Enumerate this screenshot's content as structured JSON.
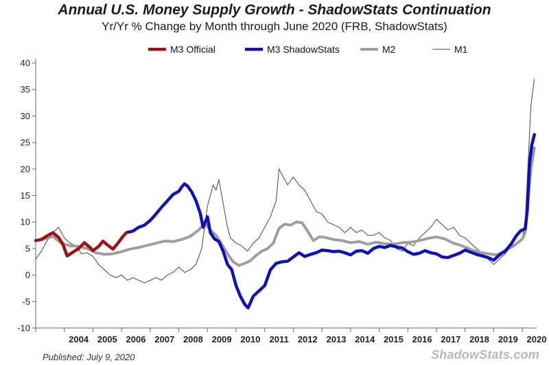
{
  "chart_data": {
    "type": "line",
    "title": "Annual U.S. Money Supply Growth - ShadowStats Continuation",
    "subtitle": "Yr/Yr % Change by Month through June 2020  (FRB, ShadowStats)",
    "ylim": [
      -10,
      40
    ],
    "yticks": [
      -10,
      -5,
      0,
      5,
      10,
      15,
      20,
      25,
      30,
      35,
      40
    ],
    "ytick_labels": [
      "-10",
      "-5",
      "0",
      "5",
      "10",
      "15",
      "20",
      "25",
      "30",
      "35",
      "40"
    ],
    "xlim": [
      2003.0,
      2020.5
    ],
    "xtick_labels": [
      "2004",
      "2005",
      "2006",
      "2007",
      "2008",
      "2009",
      "2010",
      "2011",
      "2012",
      "2013",
      "2014",
      "2015",
      "2016",
      "2017",
      "2018",
      "2019",
      "2020"
    ],
    "xtick_positions": [
      2004,
      2005,
      2006,
      2007,
      2008,
      2009,
      2010,
      2011,
      2012,
      2013,
      2014,
      2015,
      2016,
      2017,
      2018,
      2019,
      2020
    ],
    "grid": false,
    "legend_position": "top",
    "series": [
      {
        "name": "M3 Official",
        "color": "#9b1115",
        "width": 4.5,
        "x": [
          2003.0,
          2003.2,
          2003.4,
          2003.6,
          2003.8,
          2003.95,
          2004.1,
          2004.3,
          2004.5,
          2004.7,
          2004.9,
          2005.0,
          2005.2,
          2005.35,
          2005.5,
          2005.7,
          2005.9,
          2006.05,
          2006.17
        ],
        "y": [
          6.5,
          6.7,
          7.4,
          8.0,
          7.1,
          5.8,
          3.6,
          4.3,
          5.0,
          6.1,
          5.2,
          4.6,
          5.4,
          6.4,
          5.7,
          4.9,
          6.2,
          7.3,
          8.0
        ]
      },
      {
        "name": "M3 ShadowStats",
        "color": "#1010b8",
        "width": 4.5,
        "x": [
          2006.17,
          2006.4,
          2006.6,
          2006.8,
          2007.0,
          2007.2,
          2007.4,
          2007.6,
          2007.8,
          2008.0,
          2008.1,
          2008.2,
          2008.3,
          2008.45,
          2008.6,
          2008.75,
          2008.85,
          2009.0,
          2009.1,
          2009.25,
          2009.4,
          2009.55,
          2009.7,
          2009.85,
          2010.0,
          2010.15,
          2010.3,
          2010.42,
          2010.6,
          2010.8,
          2011.0,
          2011.2,
          2011.4,
          2011.6,
          2011.8,
          2012.0,
          2012.2,
          2012.4,
          2012.6,
          2012.8,
          2013.0,
          2013.2,
          2013.4,
          2013.6,
          2013.8,
          2014.0,
          2014.2,
          2014.4,
          2014.6,
          2014.8,
          2015.0,
          2015.2,
          2015.4,
          2015.6,
          2015.8,
          2016.0,
          2016.2,
          2016.4,
          2016.6,
          2016.8,
          2017.0,
          2017.2,
          2017.4,
          2017.6,
          2017.8,
          2018.0,
          2018.2,
          2018.4,
          2018.6,
          2018.8,
          2019.0,
          2019.2,
          2019.4,
          2019.6,
          2019.8,
          2019.95,
          2020.1,
          2020.17,
          2020.25,
          2020.33,
          2020.42
        ],
        "y": [
          8.0,
          8.3,
          9.0,
          9.4,
          10.3,
          11.5,
          12.8,
          14.0,
          15.2,
          15.8,
          16.6,
          17.2,
          16.8,
          15.7,
          14.0,
          11.6,
          9.0,
          11.0,
          8.0,
          6.8,
          6.3,
          4.5,
          2.0,
          1.0,
          -2.0,
          -4.0,
          -5.5,
          -6.2,
          -4.0,
          -3.0,
          -2.0,
          1.0,
          2.2,
          2.5,
          2.6,
          3.4,
          4.2,
          3.5,
          3.9,
          4.2,
          4.7,
          4.6,
          4.4,
          4.5,
          4.2,
          3.8,
          4.5,
          4.6,
          4.1,
          5.0,
          5.4,
          5.2,
          5.6,
          5.3,
          5.1,
          4.4,
          3.9,
          4.1,
          4.6,
          4.2,
          4.0,
          3.4,
          3.3,
          3.7,
          4.1,
          4.7,
          4.3,
          3.9,
          3.6,
          3.3,
          2.8,
          3.8,
          4.5,
          5.8,
          7.5,
          8.4,
          8.7,
          12.0,
          21.0,
          24.5,
          26.5
        ]
      },
      {
        "name": "M2",
        "color": "#9e9e9e",
        "width": 4,
        "x": [
          2003.0,
          2003.3,
          2003.6,
          2003.9,
          2004.2,
          2004.5,
          2004.8,
          2005.1,
          2005.4,
          2005.7,
          2006.0,
          2006.3,
          2006.6,
          2006.9,
          2007.2,
          2007.5,
          2007.8,
          2008.1,
          2008.4,
          2008.7,
          2008.9,
          2009.1,
          2009.3,
          2009.5,
          2009.7,
          2009.9,
          2010.1,
          2010.3,
          2010.5,
          2010.7,
          2010.9,
          2011.1,
          2011.3,
          2011.5,
          2011.7,
          2011.9,
          2012.1,
          2012.3,
          2012.5,
          2012.7,
          2012.9,
          2013.1,
          2013.4,
          2013.7,
          2014.0,
          2014.3,
          2014.6,
          2014.9,
          2015.2,
          2015.5,
          2015.8,
          2016.1,
          2016.4,
          2016.7,
          2017.0,
          2017.3,
          2017.6,
          2017.9,
          2018.2,
          2018.5,
          2018.8,
          2019.1,
          2019.4,
          2019.7,
          2020.0,
          2020.1,
          2020.2,
          2020.3,
          2020.42
        ],
        "y": [
          6.5,
          6.8,
          7.3,
          6.0,
          5.5,
          5.4,
          5.0,
          4.2,
          3.9,
          4.0,
          4.4,
          4.9,
          5.2,
          5.6,
          6.0,
          6.4,
          6.3,
          6.7,
          7.3,
          8.5,
          9.8,
          8.5,
          7.5,
          5.8,
          4.0,
          2.5,
          1.8,
          2.2,
          2.7,
          3.7,
          4.5,
          5.0,
          6.0,
          8.8,
          9.6,
          9.4,
          10.0,
          9.9,
          8.3,
          6.5,
          7.2,
          7.1,
          6.7,
          6.5,
          6.1,
          6.3,
          5.8,
          6.2,
          5.9,
          5.8,
          6.1,
          6.2,
          6.5,
          6.9,
          7.2,
          6.8,
          6.0,
          5.5,
          4.8,
          4.3,
          4.0,
          3.8,
          4.6,
          5.5,
          6.8,
          8.0,
          14.0,
          20.0,
          24.0
        ]
      },
      {
        "name": "M1",
        "color": "#444444",
        "width": 1,
        "x": [
          2003.0,
          2003.2,
          2003.4,
          2003.6,
          2003.8,
          2004.0,
          2004.2,
          2004.4,
          2004.6,
          2004.8,
          2005.0,
          2005.2,
          2005.4,
          2005.6,
          2005.8,
          2006.0,
          2006.2,
          2006.4,
          2006.6,
          2006.8,
          2007.0,
          2007.2,
          2007.4,
          2007.6,
          2007.8,
          2008.0,
          2008.2,
          2008.4,
          2008.6,
          2008.8,
          2009.0,
          2009.1,
          2009.2,
          2009.3,
          2009.4,
          2009.5,
          2009.6,
          2009.7,
          2009.8,
          2010.0,
          2010.2,
          2010.4,
          2010.6,
          2010.8,
          2011.0,
          2011.2,
          2011.4,
          2011.5,
          2011.6,
          2011.8,
          2012.0,
          2012.2,
          2012.4,
          2012.6,
          2012.8,
          2013.0,
          2013.2,
          2013.4,
          2013.6,
          2013.8,
          2014.0,
          2014.2,
          2014.4,
          2014.6,
          2014.8,
          2015.0,
          2015.2,
          2015.4,
          2015.6,
          2015.8,
          2016.0,
          2016.2,
          2016.4,
          2016.6,
          2016.8,
          2017.0,
          2017.2,
          2017.4,
          2017.6,
          2017.8,
          2018.0,
          2018.2,
          2018.4,
          2018.6,
          2018.8,
          2019.0,
          2019.2,
          2019.4,
          2019.6,
          2019.8,
          2020.0,
          2020.1,
          2020.2,
          2020.3,
          2020.42
        ],
        "y": [
          3.0,
          4.5,
          6.5,
          8.0,
          9.0,
          7.0,
          6.0,
          5.5,
          4.0,
          4.2,
          3.5,
          2.0,
          1.0,
          0.0,
          -0.5,
          0.0,
          -1.0,
          -0.5,
          -1.0,
          -1.5,
          -1.0,
          -0.5,
          -1.0,
          0.0,
          0.5,
          1.5,
          0.5,
          1.0,
          2.0,
          5.0,
          13.0,
          15.0,
          17.0,
          16.0,
          18.0,
          15.0,
          12.0,
          9.0,
          7.0,
          6.0,
          5.5,
          4.5,
          6.0,
          7.0,
          9.0,
          11.0,
          14.0,
          20.0,
          19.0,
          17.0,
          18.5,
          17.0,
          16.0,
          14.0,
          12.0,
          11.5,
          10.0,
          9.5,
          9.0,
          8.0,
          9.0,
          8.0,
          8.5,
          7.5,
          7.5,
          8.0,
          7.0,
          6.5,
          5.0,
          4.5,
          6.0,
          5.5,
          7.0,
          8.0,
          9.0,
          10.5,
          9.5,
          8.5,
          9.0,
          7.5,
          7.0,
          6.0,
          5.0,
          4.0,
          3.0,
          2.0,
          3.0,
          4.0,
          5.5,
          6.0,
          7.0,
          10.0,
          21.0,
          32.0,
          37.0
        ]
      }
    ]
  },
  "footer": {
    "published": "Published: July 9, 2020",
    "watermark": "ShadowStats.com"
  }
}
